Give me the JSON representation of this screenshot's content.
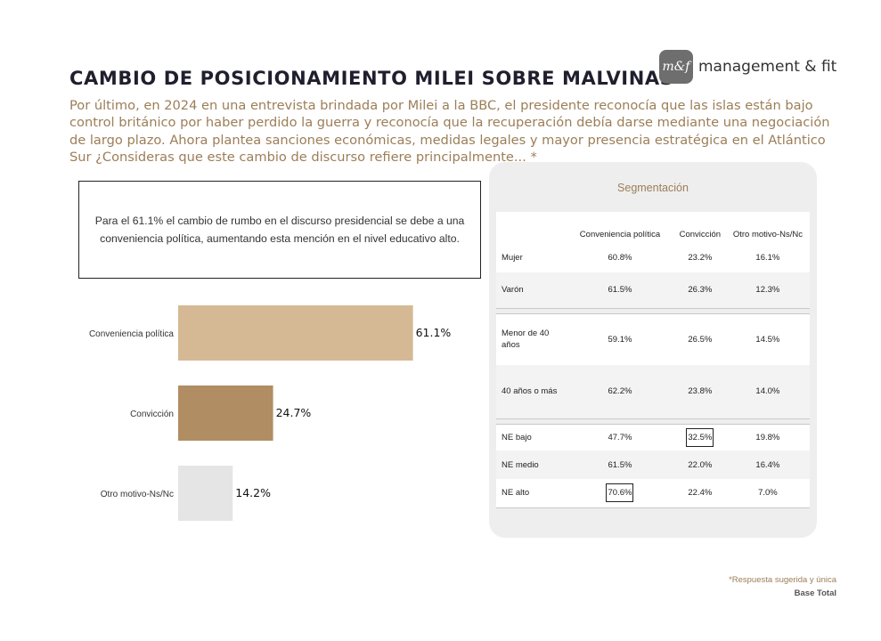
{
  "title": "CAMBIO DE POSICIONAMIENTO MILEI SOBRE MALVINAS",
  "logo": {
    "badge": "m&f",
    "text": "management & fit"
  },
  "intro": "Por último, en 2024 en una entrevista brindada por Milei a la BBC, el presidente reconocía que las islas están bajo control británico por haber perdido la guerra y reconocía que la recuperación debía darse mediante una negociación de largo plazo. Ahora plantea sanciones económicas, medidas legales y mayor presencia estratégica en el Atlántico Sur ¿Consideras que este cambio de discurso refiere principalmente... *",
  "callout": "Para el 61.1% el cambio de rumbo en el discurso presidencial se debe a una conveniencia política, aumentando esta mención en el nivel educativo alto.",
  "chart_data": {
    "type": "bar",
    "orientation": "horizontal",
    "categories": [
      "Conveniencia política",
      "Convicción",
      "Otro motivo-Ns/Nc"
    ],
    "values": [
      61.1,
      24.7,
      14.2
    ],
    "value_labels": [
      "61.1%",
      "24.7%",
      "14.2%"
    ],
    "colors": [
      "#d4b994",
      "#b08d62",
      "#e5e5e5"
    ],
    "xlim": [
      0,
      70
    ]
  },
  "segmentation": {
    "title": "Segmentación",
    "headers": [
      "Conveniencia política",
      "Convicción",
      "Otro motivo-Ns/Nc"
    ],
    "rows": [
      {
        "label": "Mujer",
        "values": [
          "60.8%",
          "23.2%",
          "16.1%"
        ]
      },
      {
        "label": "Varón",
        "values": [
          "61.5%",
          "26.3%",
          "12.3%"
        ]
      },
      {
        "label": "Menor de 40 años",
        "values": [
          "59.1%",
          "26.5%",
          "14.5%"
        ]
      },
      {
        "label": "40 años o más",
        "values": [
          "62.2%",
          "23.8%",
          "14.0%"
        ]
      },
      {
        "label": "NE bajo",
        "values": [
          "47.7%",
          "32.5%",
          "19.8%"
        ]
      },
      {
        "label": "NE medio",
        "values": [
          "61.5%",
          "22.0%",
          "16.4%"
        ]
      },
      {
        "label": "NE alto",
        "values": [
          "70.6%",
          "22.4%",
          "7.0%"
        ]
      }
    ]
  },
  "footnote": "*Respuesta sugerida y única",
  "base": "Base Total"
}
